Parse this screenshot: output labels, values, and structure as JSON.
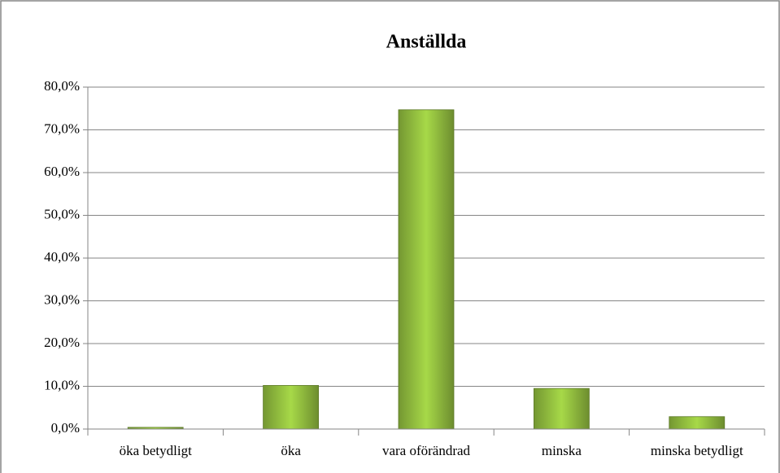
{
  "chart_data": {
    "type": "bar",
    "title": "Anställda",
    "categories": [
      "öka betydligt",
      "öka",
      "vara oförändrad",
      "minska",
      "minska betydligt"
    ],
    "values": [
      0.4,
      10.2,
      74.7,
      9.5,
      2.9
    ],
    "color": "#9bc943",
    "ylim": [
      0,
      80
    ],
    "yticks": [
      {
        "value": 0,
        "label": "0,0%"
      },
      {
        "value": 10,
        "label": "10,0%"
      },
      {
        "value": 20,
        "label": "20,0%"
      },
      {
        "value": 30,
        "label": "30,0%"
      },
      {
        "value": 40,
        "label": "40,0%"
      },
      {
        "value": 50,
        "label": "50,0%"
      },
      {
        "value": 60,
        "label": "60,0%"
      },
      {
        "value": 70,
        "label": "70,0%"
      },
      {
        "value": 80,
        "label": "80,0%"
      }
    ],
    "grid": true
  }
}
